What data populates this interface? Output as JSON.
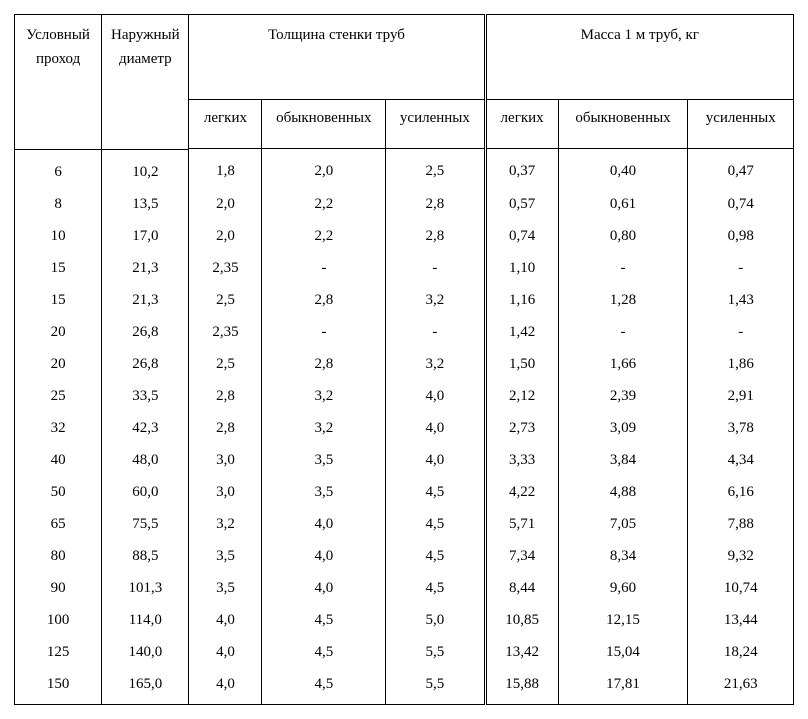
{
  "header": {
    "col1": "Условный проход",
    "col2": "Наружный диаметр",
    "group1": "Толщина стенки труб",
    "group2": "Масса 1 м труб, кг",
    "sub_light": "легких",
    "sub_ordinary": "обыкновенных",
    "sub_reinforced": "усиленных"
  },
  "columns": [
    "cond",
    "diam",
    "t_light",
    "t_ord",
    "t_rein",
    "m_light",
    "m_ord",
    "m_rein"
  ],
  "rows": [
    [
      "6",
      "10,2",
      "1,8",
      "2,0",
      "2,5",
      "0,37",
      "0,40",
      "0,47"
    ],
    [
      "8",
      "13,5",
      "2,0",
      "2,2",
      "2,8",
      "0,57",
      "0,61",
      "0,74"
    ],
    [
      "10",
      "17,0",
      "2,0",
      "2,2",
      "2,8",
      "0,74",
      "0,80",
      "0,98"
    ],
    [
      "15",
      "21,3",
      "2,35",
      "-",
      "-",
      "1,10",
      "-",
      "-"
    ],
    [
      "15",
      "21,3",
      "2,5",
      "2,8",
      "3,2",
      "1,16",
      "1,28",
      "1,43"
    ],
    [
      "20",
      "26,8",
      "2,35",
      "-",
      "-",
      "1,42",
      "-",
      "-"
    ],
    [
      "20",
      "26,8",
      "2,5",
      "2,8",
      "3,2",
      "1,50",
      "1,66",
      "1,86"
    ],
    [
      "25",
      "33,5",
      "2,8",
      "3,2",
      "4,0",
      "2,12",
      "2,39",
      "2,91"
    ],
    [
      "32",
      "42,3",
      "2,8",
      "3,2",
      "4,0",
      "2,73",
      "3,09",
      "3,78"
    ],
    [
      "40",
      "48,0",
      "3,0",
      "3,5",
      "4,0",
      "3,33",
      "3,84",
      "4,34"
    ],
    [
      "50",
      "60,0",
      "3,0",
      "3,5",
      "4,5",
      "4,22",
      "4,88",
      "6,16"
    ],
    [
      "65",
      "75,5",
      "3,2",
      "4,0",
      "4,5",
      "5,71",
      "7,05",
      "7,88"
    ],
    [
      "80",
      "88,5",
      "3,5",
      "4,0",
      "4,5",
      "7,34",
      "8,34",
      "9,32"
    ],
    [
      "90",
      "101,3",
      "3,5",
      "4,0",
      "4,5",
      "8,44",
      "9,60",
      "10,74"
    ],
    [
      "100",
      "114,0",
      "4,0",
      "4,5",
      "5,0",
      "10,85",
      "12,15",
      "13,44"
    ],
    [
      "125",
      "140,0",
      "4,0",
      "4,5",
      "5,5",
      "13,42",
      "15,04",
      "18,24"
    ],
    [
      "150",
      "165,0",
      "4,0",
      "4,5",
      "5,5",
      "15,88",
      "17,81",
      "21,63"
    ]
  ],
  "style": {
    "font_family": "Times New Roman",
    "font_size_pt": 11,
    "text_color": "#000000",
    "background_color": "#ffffff",
    "border_color": "#000000",
    "group_divider": "double",
    "row_dividers": false,
    "text_align": "center"
  }
}
